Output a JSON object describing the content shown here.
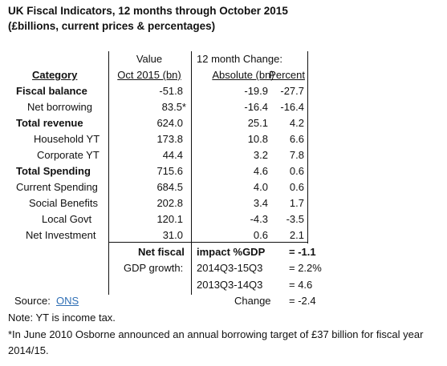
{
  "title": "UK Fiscal Indicators, 12 months through October 2015",
  "subtitle": "(£billions, current prices & percentages)",
  "header": {
    "value_top": "Value",
    "change_top": "12 month Change:",
    "category": "Category",
    "value": "Oct 2015 (bn)",
    "absolute": "Absolute (bn)",
    "percent": "Percent"
  },
  "rows": [
    {
      "label": "Fiscal balance",
      "value": "-51.8",
      "absolute": "-19.9",
      "percent": "-27.7"
    },
    {
      "label": "Net borrowing",
      "value": "83.5*",
      "absolute": "-16.4",
      "percent": "-16.4"
    },
    {
      "label": "Total revenue",
      "value": "624.0",
      "absolute": "25.1",
      "percent": "4.2"
    },
    {
      "label": "Household YT",
      "value": "173.8",
      "absolute": "10.8",
      "percent": "6.6"
    },
    {
      "label": "Corporate YT",
      "value": "44.4",
      "absolute": "3.2",
      "percent": "7.8"
    },
    {
      "label": "Total Spending",
      "value": "715.6",
      "absolute": "4.6",
      "percent": "0.6"
    },
    {
      "label": "Current Spending",
      "value": "684.5",
      "absolute": "4.0",
      "percent": "0.6"
    },
    {
      "label": "Social Benefits",
      "value": "202.8",
      "absolute": "3.4",
      "percent": "1.7"
    },
    {
      "label": "Local Govt",
      "value": "120.1",
      "absolute": "-4.3",
      "percent": "-3.5"
    },
    {
      "label": "Net Investment",
      "value": "31.0",
      "absolute": "0.6",
      "percent": "2.1"
    }
  ],
  "summary": {
    "net_fiscal": "Net fiscal",
    "impact": "impact %GDP",
    "impact_value": "= -1.1",
    "gdp_growth": "GDP growth:",
    "p1": "2014Q3-15Q3",
    "p1_value": "= 2.2%",
    "p2": "2013Q3-14Q3",
    "p2_value": "= 4.6",
    "change": "Change",
    "change_value": "= -2.4"
  },
  "source_label": "Source:",
  "source_link": "ONS",
  "note1": "Note: YT is income tax.",
  "note2": "*In June 2010 Osborne announced an annual borrowing target of £37 billion for fiscal year",
  "note3": "2014/15."
}
